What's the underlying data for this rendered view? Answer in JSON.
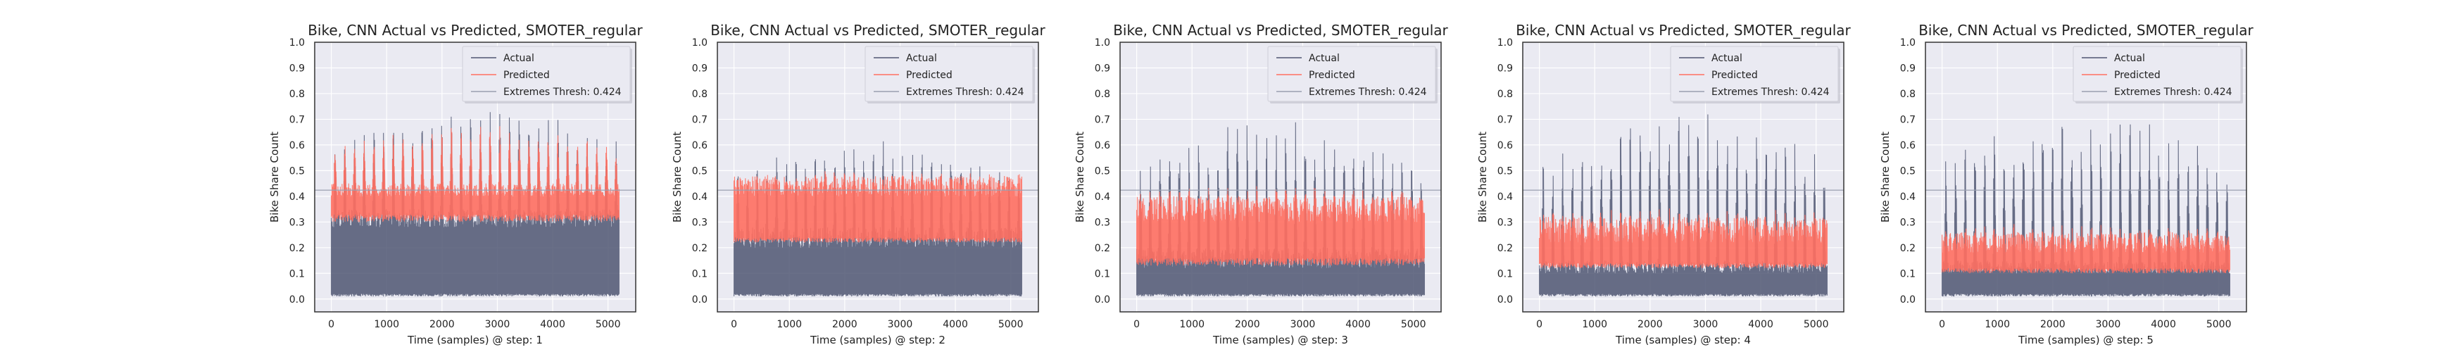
{
  "figure": {
    "background": "#ffffff"
  },
  "colors": {
    "plot_bg": "#eaeaf2",
    "grid": "#ffffff",
    "actual": "#4f5672",
    "predicted": "#ff6f61",
    "threshold": "#9aa0b0",
    "frame": "#333333"
  },
  "chart_data": [
    {
      "type": "line",
      "title": "Bike, CNN Actual vs Predicted, SMOTER_regular",
      "xlabel": "Time (samples) @ step: 1",
      "ylabel": "Bike Share Count",
      "xlim": [
        -300,
        5500
      ],
      "ylim": [
        -0.05,
        1.0
      ],
      "xticks": [
        0,
        1000,
        2000,
        3000,
        4000,
        5000
      ],
      "yticks": [
        0.0,
        0.1,
        0.2,
        0.3,
        0.4,
        0.5,
        0.6,
        0.7,
        0.8,
        0.9,
        1.0
      ],
      "grid": true,
      "legend": {
        "position": "top-right",
        "entries": [
          "Actual",
          "Predicted",
          "Extremes Thresh: 0.424"
        ]
      },
      "threshold": 0.424,
      "series": [
        {
          "name": "Actual",
          "band_low": [
            0.01,
            0.02
          ],
          "band_high": [
            0.28,
            0.35
          ],
          "peak_max": [
            0.62,
            0.75
          ],
          "x_range": [
            0,
            5200
          ]
        },
        {
          "name": "Predicted",
          "band_low": [
            0.3,
            0.33
          ],
          "band_high": [
            0.4,
            0.45
          ],
          "peak_max": [
            0.6,
            0.68
          ],
          "x_range": [
            0,
            5200
          ]
        }
      ]
    },
    {
      "type": "line",
      "title": "Bike, CNN Actual vs Predicted, SMOTER_regular",
      "xlabel": "Time (samples) @ step: 2",
      "ylabel": "Bike Share Count",
      "xlim": [
        -300,
        5500
      ],
      "ylim": [
        -0.05,
        1.0
      ],
      "xticks": [
        0,
        1000,
        2000,
        3000,
        4000,
        5000
      ],
      "yticks": [
        0.0,
        0.1,
        0.2,
        0.3,
        0.4,
        0.5,
        0.6,
        0.7,
        0.8,
        0.9,
        1.0
      ],
      "grid": true,
      "legend": {
        "position": "top-right",
        "entries": [
          "Actual",
          "Predicted",
          "Extremes Thresh: 0.424"
        ]
      },
      "threshold": 0.424,
      "series": [
        {
          "name": "Actual",
          "band_low": [
            0.01,
            0.02
          ],
          "band_high": [
            0.2,
            0.28
          ],
          "peak_max": [
            0.5,
            0.62
          ],
          "x_range": [
            0,
            5200
          ]
        },
        {
          "name": "Predicted",
          "band_low": [
            0.22,
            0.24
          ],
          "band_high": [
            0.4,
            0.48
          ],
          "peak_max": [
            0.45,
            0.5
          ],
          "x_range": [
            0,
            5200
          ]
        }
      ]
    },
    {
      "type": "line",
      "title": "Bike, CNN Actual vs Predicted, SMOTER_regular",
      "xlabel": "Time (samples) @ step: 3",
      "ylabel": "Bike Share Count",
      "xlim": [
        -300,
        5500
      ],
      "ylim": [
        -0.05,
        1.0
      ],
      "xticks": [
        0,
        1000,
        2000,
        3000,
        4000,
        5000
      ],
      "yticks": [
        0.0,
        0.1,
        0.2,
        0.3,
        0.4,
        0.5,
        0.6,
        0.7,
        0.8,
        0.9,
        1.0
      ],
      "grid": true,
      "legend": {
        "position": "top-right",
        "entries": [
          "Actual",
          "Predicted",
          "Extremes Thresh: 0.424"
        ]
      },
      "threshold": 0.424,
      "series": [
        {
          "name": "Actual",
          "band_low": [
            0.01,
            0.02
          ],
          "band_high": [
            0.12,
            0.2
          ],
          "peak_max": [
            0.5,
            0.7
          ],
          "x_range": [
            0,
            5200
          ]
        },
        {
          "name": "Predicted",
          "band_low": [
            0.13,
            0.16
          ],
          "band_high": [
            0.3,
            0.4
          ],
          "peak_max": [
            0.38,
            0.45
          ],
          "x_range": [
            0,
            5200
          ]
        }
      ]
    },
    {
      "type": "line",
      "title": "Bike, CNN Actual vs Predicted, SMOTER_regular",
      "xlabel": "Time (samples) @ step: 4",
      "ylabel": "Bike Share Count",
      "xlim": [
        -300,
        5500
      ],
      "ylim": [
        -0.05,
        1.0
      ],
      "xticks": [
        0,
        1000,
        2000,
        3000,
        4000,
        5000
      ],
      "yticks": [
        0.0,
        0.1,
        0.2,
        0.3,
        0.4,
        0.5,
        0.6,
        0.7,
        0.8,
        0.9,
        1.0
      ],
      "grid": true,
      "legend": {
        "position": "top-right",
        "entries": [
          "Actual",
          "Predicted",
          "Extremes Thresh: 0.424"
        ]
      },
      "threshold": 0.424,
      "series": [
        {
          "name": "Actual",
          "band_low": [
            0.01,
            0.02
          ],
          "band_high": [
            0.1,
            0.15
          ],
          "peak_max": [
            0.5,
            0.75
          ],
          "x_range": [
            0,
            5200
          ]
        },
        {
          "name": "Predicted",
          "band_low": [
            0.12,
            0.14
          ],
          "band_high": [
            0.22,
            0.32
          ],
          "peak_max": [
            0.28,
            0.36
          ],
          "x_range": [
            0,
            5200
          ]
        }
      ]
    },
    {
      "type": "line",
      "title": "Bike, CNN Actual vs Predicted, SMOTER_regular",
      "xlabel": "Time (samples) @ step: 5",
      "ylabel": "Bike Share Count",
      "xlim": [
        -300,
        5500
      ],
      "ylim": [
        -0.05,
        1.0
      ],
      "xticks": [
        0,
        1000,
        2000,
        3000,
        4000,
        5000
      ],
      "yticks": [
        0.0,
        0.1,
        0.2,
        0.3,
        0.4,
        0.5,
        0.6,
        0.7,
        0.8,
        0.9,
        1.0
      ],
      "grid": true,
      "legend": {
        "position": "top-right",
        "entries": [
          "Actual",
          "Predicted",
          "Extremes Thresh: 0.424"
        ]
      },
      "threshold": 0.424,
      "series": [
        {
          "name": "Actual",
          "band_low": [
            0.01,
            0.02
          ],
          "band_high": [
            0.1,
            0.15
          ],
          "peak_max": [
            0.5,
            0.75
          ],
          "x_range": [
            0,
            5200
          ]
        },
        {
          "name": "Predicted",
          "band_low": [
            0.1,
            0.12
          ],
          "band_high": [
            0.18,
            0.26
          ],
          "peak_max": [
            0.22,
            0.3
          ],
          "x_range": [
            0,
            5200
          ]
        }
      ]
    }
  ]
}
